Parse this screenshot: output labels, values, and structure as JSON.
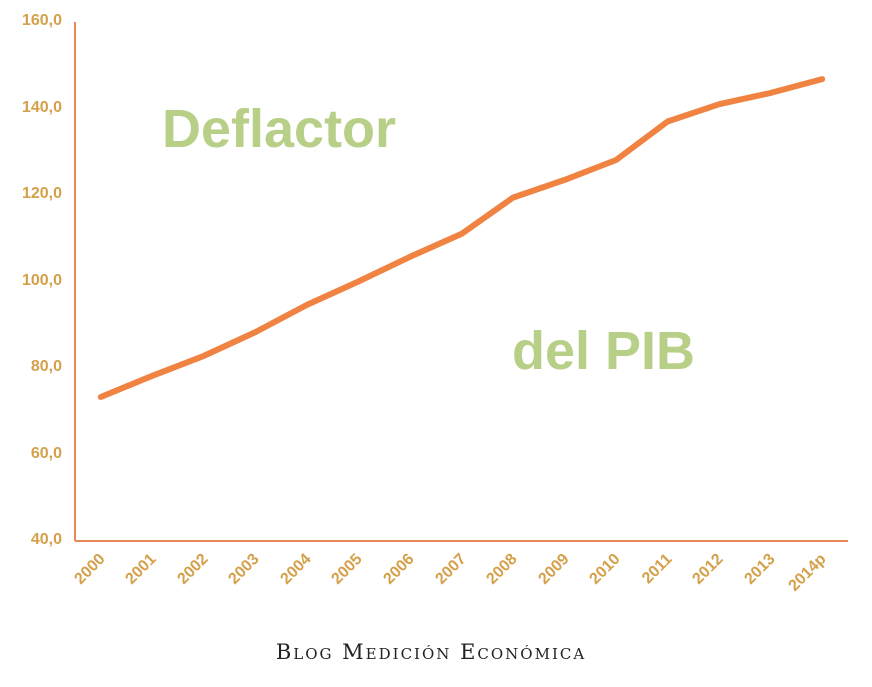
{
  "chart_data": {
    "type": "line",
    "title": "Deflactor del PIB",
    "title_parts": [
      "Deflactor",
      "del PIB"
    ],
    "xlabel": "",
    "ylabel": "",
    "categories": [
      "2000",
      "2001",
      "2002",
      "2003",
      "2004",
      "2005",
      "2006",
      "2007",
      "2008",
      "2009",
      "2010",
      "2011",
      "2012",
      "2013",
      "2014p"
    ],
    "series": [
      {
        "name": "Deflactor del PIB",
        "color": "#F08341",
        "values": [
          73.3,
          78.2,
          82.8,
          88.3,
          94.6,
          100.0,
          105.7,
          111.0,
          119.4,
          123.5,
          128.1,
          137.0,
          141.0,
          143.6,
          146.8
        ]
      }
    ],
    "ylim": [
      40,
      160
    ],
    "yticks": [
      "160,0",
      "140,0",
      "120,0",
      "100,0",
      "80,0",
      "60,0",
      "40,0"
    ],
    "grid": false,
    "legend": "none",
    "axis_color": "#E8885A",
    "tick_label_color": "#D4A04A",
    "title_color": "#B7CF86"
  },
  "footer": {
    "text": "Blog Medición Económica"
  }
}
